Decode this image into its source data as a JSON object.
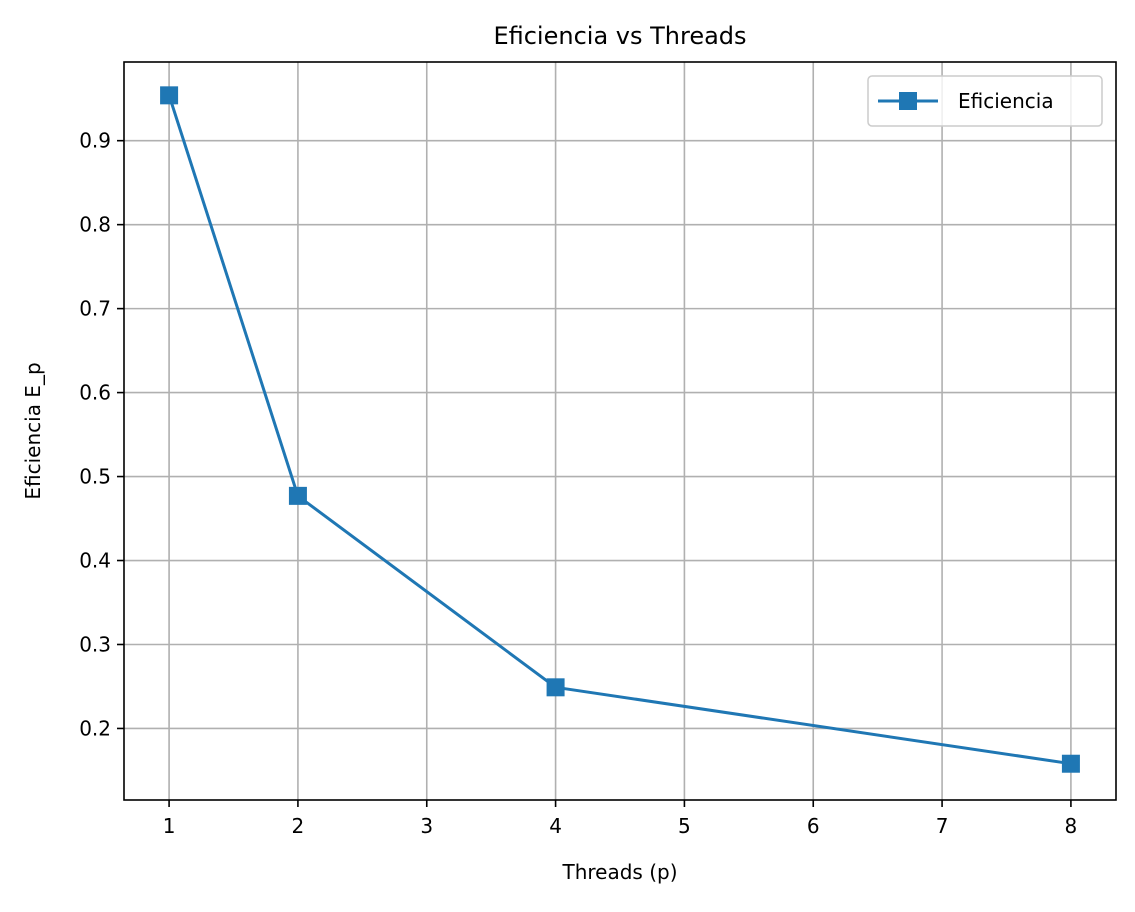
{
  "chart_data": {
    "type": "line",
    "title": "Eficiencia vs Threads",
    "xlabel": "Threads (p)",
    "ylabel": "Eficiencia E_p",
    "xlim": [
      0.65,
      8.35
    ],
    "ylim": [
      0.1148,
      0.9937
    ],
    "xticks": [
      1,
      2,
      3,
      4,
      5,
      6,
      7,
      8
    ],
    "xtick_labels": [
      "1",
      "2",
      "3",
      "4",
      "5",
      "6",
      "7",
      "8"
    ],
    "yticks": [
      0.2,
      0.3,
      0.4,
      0.5,
      0.6,
      0.7,
      0.8,
      0.9
    ],
    "ytick_labels": [
      "0.2",
      "0.3",
      "0.4",
      "0.5",
      "0.6",
      "0.7",
      "0.8",
      "0.9"
    ],
    "grid": true,
    "legend_position": "upper right",
    "series": [
      {
        "name": "Eficiencia",
        "marker": "square",
        "color": "#1f77b4",
        "x": [
          1,
          2,
          4,
          8
        ],
        "y": [
          0.954,
          0.477,
          0.249,
          0.158
        ]
      }
    ]
  }
}
